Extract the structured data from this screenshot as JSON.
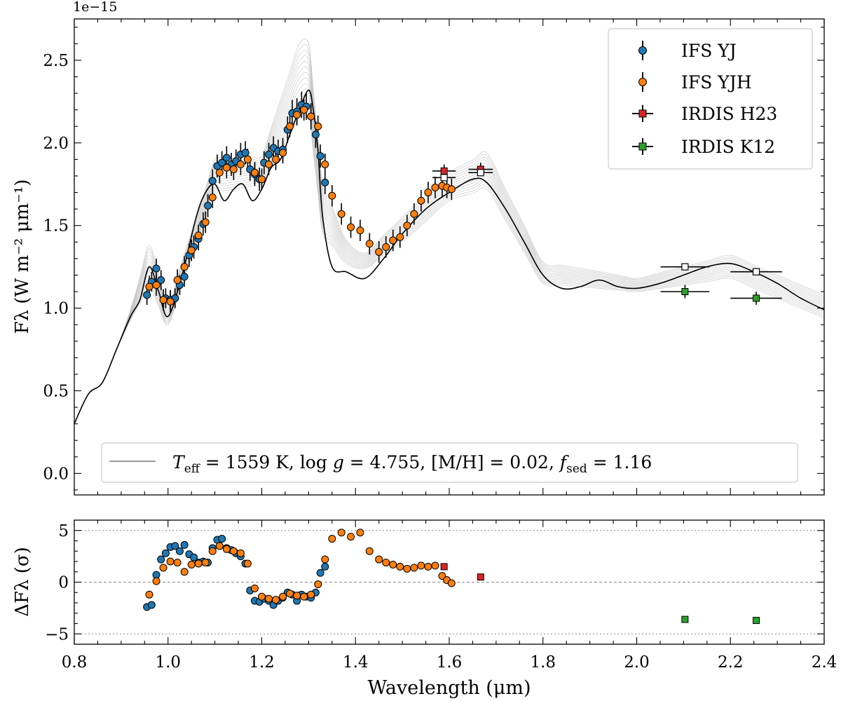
{
  "chart_data": [
    {
      "type": "line",
      "panel": "main",
      "offset_label": "1e−15",
      "xlim": [
        0.8,
        2.4
      ],
      "ylim": [
        -0.13,
        2.75
      ],
      "ylabel": "Fλ (W m⁻² μm⁻¹)",
      "x_ticks": [
        0.8,
        1.0,
        1.2,
        1.4,
        1.6,
        1.8,
        2.0,
        2.2,
        2.4
      ],
      "y_ticks": [
        0.0,
        0.5,
        1.0,
        1.5,
        2.0,
        2.5
      ],
      "y_tick_labels": [
        "0.0",
        "0.5",
        "1.0",
        "1.5",
        "2.0",
        "2.5"
      ],
      "legend": {
        "position": "top-right",
        "entries": [
          "IFS YJ",
          "IFS YJH",
          "IRDIS H23",
          "IRDIS K12"
        ]
      },
      "model_label": {
        "position": "bottom-center",
        "teff_text": "T",
        "teff_sub": "eff",
        "teff_value": " = 1559 K, ",
        "logg_text": "log ",
        "g_text": "g",
        "logg_value": " = 4.755, [M/H] = 0.02, ",
        "fsed_text": "f",
        "fsed_sub": "sed",
        "fsed_value": " = 1.16"
      },
      "colors": {
        "ifs_yj": "#1f77b4",
        "ifs_yjh": "#ff7f0e",
        "irdis_h23": "#d62728",
        "irdis_k12": "#2ca02c",
        "model_best": "#000000",
        "model_samples": "#a9a9a9"
      },
      "model_best": {
        "x": [
          0.8,
          0.83,
          0.86,
          0.89,
          0.92,
          0.94,
          0.96,
          0.98,
          1.0,
          1.03,
          1.06,
          1.08,
          1.1,
          1.12,
          1.14,
          1.16,
          1.18,
          1.2,
          1.22,
          1.24,
          1.26,
          1.28,
          1.3,
          1.31,
          1.32,
          1.33,
          1.35,
          1.38,
          1.42,
          1.46,
          1.5,
          1.55,
          1.6,
          1.65,
          1.68,
          1.72,
          1.76,
          1.8,
          1.84,
          1.88,
          1.92,
          1.96,
          2.0,
          2.05,
          2.1,
          2.15,
          2.2,
          2.25,
          2.3,
          2.35,
          2.4
        ],
        "y": [
          0.3,
          0.48,
          0.55,
          0.75,
          0.95,
          1.05,
          1.25,
          1.1,
          0.95,
          1.2,
          1.55,
          1.7,
          1.75,
          1.65,
          1.72,
          1.75,
          1.65,
          1.72,
          1.85,
          1.9,
          2.05,
          2.2,
          2.32,
          2.2,
          1.95,
          1.55,
          1.25,
          1.22,
          1.18,
          1.3,
          1.45,
          1.6,
          1.7,
          1.78,
          1.76,
          1.6,
          1.4,
          1.2,
          1.12,
          1.13,
          1.17,
          1.13,
          1.12,
          1.15,
          1.2,
          1.25,
          1.27,
          1.22,
          1.15,
          1.06,
          0.99
        ]
      },
      "model_band": {
        "x": [
          0.92,
          0.96,
          1.0,
          1.1,
          1.2,
          1.28,
          1.3,
          1.33,
          1.4,
          1.5,
          1.6,
          1.68,
          1.8,
          2.0,
          2.2,
          2.4
        ],
        "lower": [
          0.93,
          1.12,
          0.9,
          1.7,
          1.75,
          2.15,
          2.18,
          1.45,
          1.2,
          1.4,
          1.65,
          1.72,
          1.15,
          1.1,
          1.18,
          0.94
        ],
        "upper": [
          0.99,
          1.38,
          1.02,
          1.9,
          1.92,
          2.6,
          2.6,
          1.75,
          1.28,
          1.55,
          1.82,
          1.94,
          1.28,
          1.18,
          1.32,
          1.08
        ]
      },
      "series": [
        {
          "name": "IFS YJ",
          "marker": "circle",
          "x": [
            0.955,
            0.965,
            0.975,
            0.985,
            0.995,
            1.005,
            1.015,
            1.025,
            1.035,
            1.045,
            1.055,
            1.065,
            1.075,
            1.085,
            1.095,
            1.105,
            1.115,
            1.125,
            1.135,
            1.145,
            1.155,
            1.165,
            1.175,
            1.185,
            1.195,
            1.205,
            1.215,
            1.225,
            1.235,
            1.245,
            1.255,
            1.265,
            1.275,
            1.285,
            1.295,
            1.305,
            1.315,
            1.325,
            1.335
          ],
          "y": [
            1.08,
            1.16,
            1.24,
            1.17,
            1.06,
            1.05,
            1.06,
            1.14,
            1.19,
            1.32,
            1.37,
            1.42,
            1.51,
            1.62,
            1.77,
            1.86,
            1.88,
            1.91,
            1.87,
            1.89,
            1.93,
            1.94,
            1.84,
            1.81,
            1.78,
            1.88,
            1.93,
            1.97,
            1.95,
            1.96,
            2.08,
            2.18,
            2.19,
            2.23,
            2.22,
            2.16,
            2.05,
            1.92,
            1.76
          ],
          "err": [
            0.06,
            0.06,
            0.06,
            0.06,
            0.06,
            0.06,
            0.06,
            0.06,
            0.06,
            0.07,
            0.07,
            0.07,
            0.07,
            0.07,
            0.07,
            0.07,
            0.07,
            0.07,
            0.07,
            0.07,
            0.07,
            0.07,
            0.07,
            0.07,
            0.07,
            0.07,
            0.07,
            0.07,
            0.07,
            0.07,
            0.08,
            0.08,
            0.08,
            0.08,
            0.08,
            0.08,
            0.08,
            0.07,
            0.07
          ]
        },
        {
          "name": "IFS YJH",
          "marker": "circle",
          "x": [
            0.96,
            0.975,
            0.99,
            1.005,
            1.02,
            1.035,
            1.05,
            1.065,
            1.08,
            1.095,
            1.11,
            1.125,
            1.14,
            1.155,
            1.17,
            1.185,
            1.2,
            1.215,
            1.23,
            1.245,
            1.26,
            1.275,
            1.29,
            1.305,
            1.32,
            1.335,
            1.35,
            1.37,
            1.39,
            1.41,
            1.43,
            1.45,
            1.465,
            1.48,
            1.495,
            1.51,
            1.525,
            1.54,
            1.555,
            1.57,
            1.585,
            1.595,
            1.605
          ],
          "y": [
            1.13,
            1.14,
            1.05,
            1.04,
            1.17,
            1.25,
            1.35,
            1.44,
            1.52,
            1.67,
            1.82,
            1.85,
            1.84,
            1.87,
            1.9,
            1.82,
            1.78,
            1.87,
            1.9,
            1.94,
            2.1,
            2.17,
            2.2,
            2.16,
            2.1,
            1.87,
            1.68,
            1.57,
            1.49,
            1.47,
            1.39,
            1.34,
            1.37,
            1.41,
            1.43,
            1.5,
            1.57,
            1.65,
            1.7,
            1.73,
            1.74,
            1.73,
            1.72
          ]
        },
        {
          "name": "IRDIS H23",
          "marker": "square",
          "x": [
            1.589,
            1.667
          ],
          "y": [
            1.83,
            1.84
          ],
          "xerr": [
            0.025,
            0.026
          ],
          "yerr": [
            0.04,
            0.04
          ]
        },
        {
          "name": "IRDIS K12",
          "marker": "square",
          "x": [
            2.103,
            2.255
          ],
          "y": [
            1.1,
            1.06
          ],
          "xerr": [
            0.052,
            0.055
          ],
          "yerr": [
            0.04,
            0.04
          ]
        },
        {
          "name": "model synthetic photometry",
          "marker": "square-open",
          "x": [
            1.589,
            1.667,
            2.103,
            2.255
          ],
          "y": [
            1.79,
            1.82,
            1.25,
            1.22
          ]
        }
      ]
    },
    {
      "type": "scatter",
      "panel": "residuals",
      "xlabel": "Wavelength (μm)",
      "ylabel": "ΔFλ (σ)",
      "xlim": [
        0.8,
        2.4
      ],
      "ylim": [
        -6,
        6
      ],
      "x_ticks": [
        0.8,
        1.0,
        1.2,
        1.4,
        1.6,
        1.8,
        2.0,
        2.2,
        2.4
      ],
      "x_tick_labels": [
        "0.8",
        "1.0",
        "1.2",
        "1.4",
        "1.6",
        "1.8",
        "2.0",
        "2.2",
        "2.4"
      ],
      "y_ticks": [
        -5,
        0,
        5
      ],
      "y_tick_labels": [
        "−5",
        "0",
        "5"
      ],
      "reference_lines": [
        -5,
        0,
        5
      ],
      "series": [
        {
          "name": "IFS YJ",
          "x": [
            0.955,
            0.965,
            0.975,
            0.985,
            0.995,
            1.005,
            1.015,
            1.025,
            1.035,
            1.045,
            1.055,
            1.065,
            1.075,
            1.085,
            1.095,
            1.105,
            1.115,
            1.125,
            1.135,
            1.145,
            1.155,
            1.165,
            1.175,
            1.185,
            1.195,
            1.205,
            1.215,
            1.225,
            1.235,
            1.245,
            1.255,
            1.265,
            1.275,
            1.285,
            1.295,
            1.305,
            1.315,
            1.325,
            1.335
          ],
          "y": [
            -2.4,
            -2.2,
            0.7,
            2.2,
            2.8,
            3.4,
            3.5,
            3.0,
            3.6,
            2.7,
            2.4,
            1.9,
            2.0,
            1.9,
            3.3,
            4.1,
            4.2,
            3.3,
            3.1,
            2.8,
            2.5,
            1.8,
            -0.8,
            -1.8,
            -1.9,
            -1.6,
            -1.8,
            -2.2,
            -1.8,
            -1.5,
            -1.0,
            -1.2,
            -1.8,
            -1.2,
            -1.4,
            -1.5,
            -1.0,
            0.9,
            1.5
          ]
        },
        {
          "name": "IFS YJH",
          "x": [
            0.96,
            0.975,
            0.99,
            1.005,
            1.02,
            1.035,
            1.05,
            1.065,
            1.08,
            1.095,
            1.11,
            1.125,
            1.14,
            1.155,
            1.17,
            1.185,
            1.2,
            1.215,
            1.23,
            1.245,
            1.26,
            1.275,
            1.29,
            1.305,
            1.32,
            1.335,
            1.35,
            1.37,
            1.39,
            1.41,
            1.43,
            1.45,
            1.465,
            1.48,
            1.495,
            1.51,
            1.525,
            1.54,
            1.555,
            1.57,
            1.585,
            1.595,
            1.605
          ],
          "y": [
            -1.2,
            0.1,
            1.4,
            2.0,
            1.9,
            1.0,
            1.7,
            1.8,
            1.9,
            3.0,
            3.5,
            3.2,
            3.0,
            2.8,
            1.8,
            -0.6,
            -1.4,
            -1.6,
            -1.7,
            -1.4,
            -1.1,
            -1.3,
            -1.4,
            -1.2,
            -0.2,
            2.2,
            4.2,
            4.8,
            4.4,
            4.8,
            3.0,
            2.2,
            1.9,
            1.7,
            1.5,
            1.3,
            1.4,
            1.6,
            1.5,
            1.6,
            0.6,
            0.2,
            -0.1
          ]
        },
        {
          "name": "IRDIS H23",
          "x": [
            1.589,
            1.667
          ],
          "y": [
            1.5,
            0.5
          ]
        },
        {
          "name": "IRDIS K12",
          "x": [
            2.103,
            2.255
          ],
          "y": [
            -3.6,
            -3.7
          ]
        }
      ]
    }
  ]
}
